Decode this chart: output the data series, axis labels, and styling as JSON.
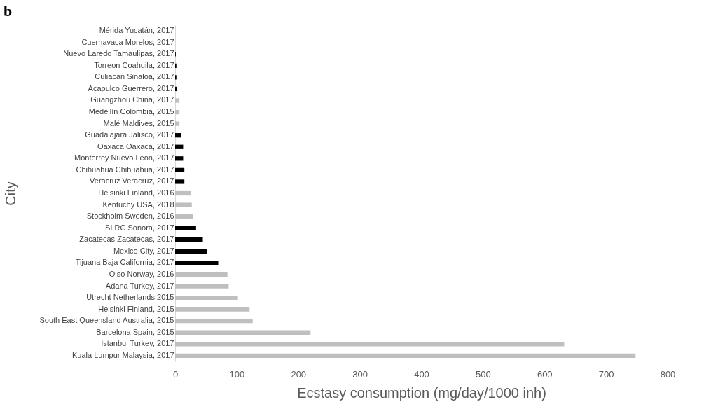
{
  "chart_data": {
    "type": "bar",
    "orientation": "horizontal",
    "title": "b",
    "xlabel": "Ecstasy consumption (mg/day/1000 inh)",
    "ylabel": "City",
    "categories": [
      "Mérida Yucatán, 2017",
      "Cuernavaca Morelos, 2017",
      "Nuevo Laredo Tamaulipas, 2017",
      "Torreon Coahuila, 2017",
      "Culiacan Sinaloa, 2017",
      "Acapulco Guerrero, 2017",
      "Guangzhou China, 2017",
      "Medellín Colombia, 2015",
      "Malé Maldives, 2015",
      "Guadalajara Jalisco, 2017",
      "Oaxaca Oaxaca, 2017",
      "Monterrey Nuevo León, 2017",
      "Chihuahua Chihuahua, 2017",
      "Veracruz Veracruz, 2017",
      "Helsinki Finland, 2016",
      "Kentuchy USA, 2018",
      "Stockholm Sweden, 2016",
      "SLRC Sonora, 2017",
      "Zacatecas Zacatecas, 2017",
      "Mexico City, 2017",
      "Tijuana Baja California, 2017",
      "Olso Norway, 2016",
      "Adana Turkey, 2017",
      "Utrecht Netherlands 2015",
      "Helsinki Finland, 2015",
      "South East Queensland Australia, 2015",
      "Barcelona Spain, 2015",
      "Istanbul Turkey, 2017",
      "Kuala Lumpur Malaysia, 2017"
    ],
    "values": [
      0,
      0,
      1,
      2,
      2,
      3,
      7,
      7,
      7,
      10,
      13,
      13,
      15,
      15,
      25,
      27,
      29,
      34,
      45,
      52,
      70,
      85,
      87,
      102,
      121,
      126,
      220,
      632,
      748
    ],
    "colors": [
      "#000000",
      "#000000",
      "#000000",
      "#000000",
      "#000000",
      "#000000",
      "#bfbfbf",
      "#bfbfbf",
      "#bfbfbf",
      "#000000",
      "#000000",
      "#000000",
      "#000000",
      "#000000",
      "#bfbfbf",
      "#bfbfbf",
      "#bfbfbf",
      "#000000",
      "#000000",
      "#000000",
      "#000000",
      "#bfbfbf",
      "#bfbfbf",
      "#bfbfbf",
      "#bfbfbf",
      "#bfbfbf",
      "#bfbfbf",
      "#bfbfbf",
      "#bfbfbf"
    ],
    "xlim": [
      0,
      800
    ],
    "xticks": [
      0,
      100,
      200,
      300,
      400,
      500,
      600,
      700,
      800
    ],
    "grid": false
  }
}
